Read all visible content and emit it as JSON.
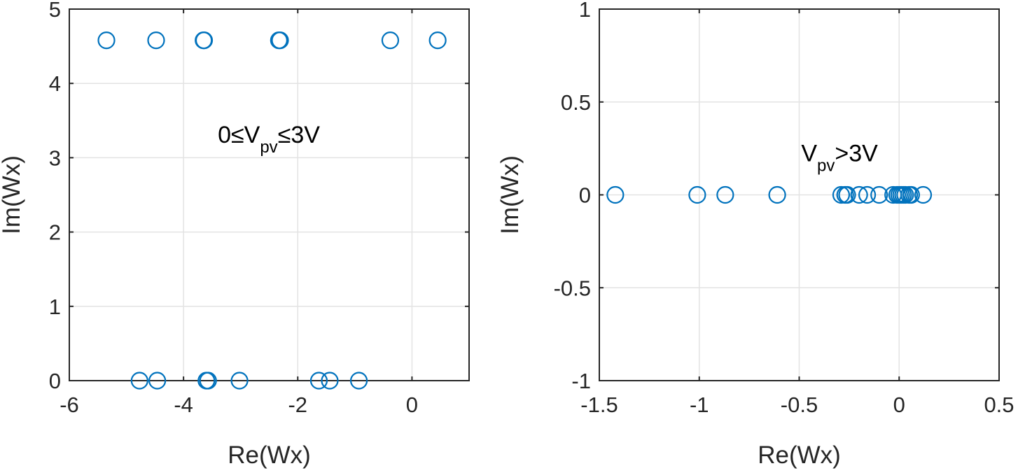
{
  "chart_data": [
    {
      "type": "scatter",
      "xlabel": "Re(Wx)",
      "ylabel": "Im(Wx)",
      "xlim": [
        -6,
        1
      ],
      "ylim": [
        0,
        5
      ],
      "xticks": [
        -6,
        -4,
        -2,
        0
      ],
      "yticks": [
        0,
        1,
        2,
        3,
        4,
        5
      ],
      "xtick_labels": [
        "-6",
        "-4",
        "-2",
        "0"
      ],
      "ytick_labels": [
        "0",
        "1",
        "2",
        "3",
        "4",
        "5"
      ],
      "grid": true,
      "marker_color": "#0072BD",
      "annotation": {
        "prefix": "0≤V",
        "sub": "pv",
        "suffix": "≤3V",
        "x": -3.4,
        "y": 3.2
      },
      "points": [
        {
          "x": -5.35,
          "y": 4.58
        },
        {
          "x": -4.48,
          "y": 4.58
        },
        {
          "x": -3.65,
          "y": 4.58
        },
        {
          "x": -3.64,
          "y": 4.58
        },
        {
          "x": -2.33,
          "y": 4.58
        },
        {
          "x": -2.31,
          "y": 4.58
        },
        {
          "x": -0.38,
          "y": 4.58
        },
        {
          "x": 0.45,
          "y": 4.58
        },
        {
          "x": -4.77,
          "y": 0
        },
        {
          "x": -4.46,
          "y": 0
        },
        {
          "x": -3.6,
          "y": 0
        },
        {
          "x": -3.57,
          "y": 0
        },
        {
          "x": -3.02,
          "y": 0
        },
        {
          "x": -1.63,
          "y": 0
        },
        {
          "x": -1.44,
          "y": 0
        },
        {
          "x": -0.93,
          "y": 0
        }
      ]
    },
    {
      "type": "scatter",
      "xlabel": "Re(Wx)",
      "ylabel": "Im(Wx)",
      "xlim": [
        -1.5,
        0.5
      ],
      "ylim": [
        -1,
        1
      ],
      "xticks": [
        -1.5,
        -1,
        -0.5,
        0,
        0.5
      ],
      "yticks": [
        -1,
        -0.5,
        0,
        0.5,
        1
      ],
      "xtick_labels": [
        "-1.5",
        "-1",
        "-0.5",
        "0",
        "0.5"
      ],
      "ytick_labels": [
        "-1",
        "-0.5",
        "0",
        "0.5",
        "1"
      ],
      "grid": true,
      "marker_color": "#0072BD",
      "annotation": {
        "prefix": "V",
        "sub": "pv",
        "suffix": ">3V",
        "x": -0.49,
        "y": 0.18
      },
      "points": [
        {
          "x": -1.42,
          "y": 0
        },
        {
          "x": -1.01,
          "y": 0
        },
        {
          "x": -0.87,
          "y": 0
        },
        {
          "x": -0.61,
          "y": 0
        },
        {
          "x": -0.29,
          "y": 0
        },
        {
          "x": -0.27,
          "y": 0
        },
        {
          "x": -0.26,
          "y": 0
        },
        {
          "x": -0.2,
          "y": 0
        },
        {
          "x": -0.16,
          "y": 0
        },
        {
          "x": -0.1,
          "y": 0
        },
        {
          "x": -0.03,
          "y": 0
        },
        {
          "x": -0.01,
          "y": 0
        },
        {
          "x": 0.0,
          "y": 0
        },
        {
          "x": 0.01,
          "y": 0
        },
        {
          "x": 0.02,
          "y": 0
        },
        {
          "x": 0.03,
          "y": 0
        },
        {
          "x": 0.05,
          "y": 0
        },
        {
          "x": 0.06,
          "y": 0
        },
        {
          "x": 0.12,
          "y": 0
        }
      ]
    }
  ]
}
